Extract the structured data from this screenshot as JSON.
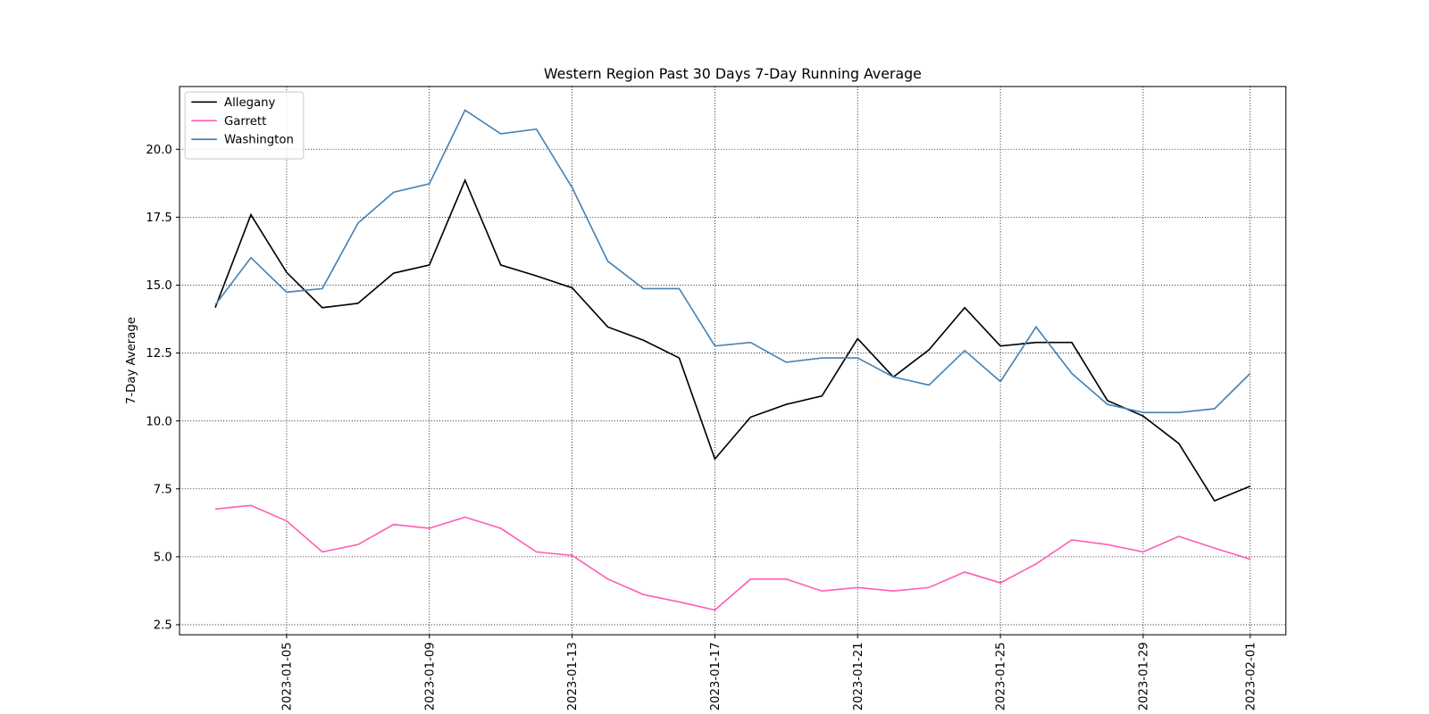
{
  "chart_data": {
    "type": "line",
    "title": "Western Region Past 30 Days 7-Day Running Average",
    "ylabel": "7-Day Average",
    "x": [
      "2023-01-03",
      "2023-01-04",
      "2023-01-05",
      "2023-01-06",
      "2023-01-07",
      "2023-01-08",
      "2023-01-09",
      "2023-01-10",
      "2023-01-11",
      "2023-01-12",
      "2023-01-13",
      "2023-01-14",
      "2023-01-15",
      "2023-01-16",
      "2023-01-17",
      "2023-01-18",
      "2023-01-19",
      "2023-01-20",
      "2023-01-21",
      "2023-01-22",
      "2023-01-23",
      "2023-01-24",
      "2023-01-25",
      "2023-01-26",
      "2023-01-27",
      "2023-01-28",
      "2023-01-29",
      "2023-01-30",
      "2023-01-31",
      "2023-02-01"
    ],
    "series": [
      {
        "name": "Allegany",
        "color": "#000000",
        "values": [
          14.17,
          17.59,
          15.47,
          14.17,
          14.33,
          15.44,
          15.74,
          18.86,
          15.74,
          15.34,
          14.9,
          13.46,
          12.97,
          12.32,
          8.6,
          10.14,
          10.61,
          10.92,
          13.03,
          11.62,
          12.62,
          14.17,
          12.76,
          12.89,
          12.89,
          10.75,
          10.18,
          9.17,
          7.06,
          7.6
        ]
      },
      {
        "name": "Garrett",
        "color": "#ff5eb4",
        "values": [
          6.76,
          6.89,
          6.32,
          5.18,
          5.45,
          6.19,
          6.05,
          6.46,
          6.05,
          5.18,
          5.05,
          4.18,
          3.61,
          3.34,
          3.04,
          4.18,
          4.18,
          3.74,
          3.87,
          3.74,
          3.87,
          4.44,
          4.04,
          4.74,
          5.62,
          5.45,
          5.18,
          5.75,
          5.32,
          4.91
        ]
      },
      {
        "name": "Washington",
        "color": "#4682b4",
        "values": [
          14.27,
          16.01,
          14.74,
          14.87,
          17.28,
          18.42,
          18.73,
          21.44,
          20.57,
          20.74,
          18.59,
          15.88,
          14.87,
          14.87,
          12.76,
          12.89,
          12.16,
          12.32,
          12.32,
          11.62,
          11.32,
          12.59,
          11.45,
          13.46,
          11.75,
          10.61,
          10.31,
          10.31,
          10.45,
          11.75
        ]
      }
    ],
    "xlim": [
      "2023-01-02",
      "2023-02-02"
    ],
    "xticks": [
      "2023-01-05",
      "2023-01-09",
      "2023-01-13",
      "2023-01-17",
      "2023-01-21",
      "2023-01-25",
      "2023-01-29",
      "2023-02-01"
    ],
    "ylim": [
      2.13,
      22.31
    ],
    "yticks": [
      2.5,
      {
        "value": 5,
        "label": "5.0"
      },
      7.5,
      {
        "value": 10,
        "label": "10.0"
      },
      12.5,
      {
        "value": 15,
        "label": "15.0"
      },
      17.5,
      {
        "value": 20,
        "label": "20.0"
      }
    ],
    "grid": true,
    "legend": "upper left"
  }
}
